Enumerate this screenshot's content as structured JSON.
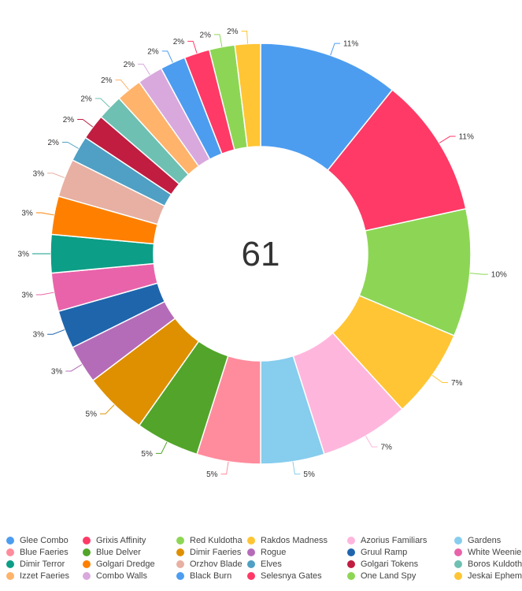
{
  "chart_data": {
    "type": "pie",
    "center_label": "61",
    "legend_position": "bottom",
    "series": [
      {
        "name": "Glee Combo",
        "value": 11,
        "label": "11%",
        "color": "#4c9df0"
      },
      {
        "name": "Grixis Affinity",
        "value": 11,
        "label": "11%",
        "color": "#ff3a66"
      },
      {
        "name": "Red Kuldotha",
        "value": 10,
        "label": "10%",
        "color": "#8dd655"
      },
      {
        "name": "Rakdos Madness",
        "value": 7,
        "label": "7%",
        "color": "#ffc534"
      },
      {
        "name": "Azorius Familiars",
        "value": 7,
        "label": "7%",
        "color": "#ffb6dd"
      },
      {
        "name": "Gardens",
        "value": 5,
        "label": "5%",
        "color": "#86cdee"
      },
      {
        "name": "Blue Faeries",
        "value": 5,
        "label": "5%",
        "color": "#ff8c9d"
      },
      {
        "name": "Blue Delver",
        "value": 5,
        "label": "5%",
        "color": "#52a52a"
      },
      {
        "name": "Dimir Faeries",
        "value": 5,
        "label": "5%",
        "color": "#de9000"
      },
      {
        "name": "Rogue",
        "value": 3,
        "label": "3%",
        "color": "#b56cb8"
      },
      {
        "name": "Gruul Ramp",
        "value": 3,
        "label": "3%",
        "color": "#1f65ac"
      },
      {
        "name": "White Weenie",
        "value": 3,
        "label": "3%",
        "color": "#e963aa"
      },
      {
        "name": "Dimir Terror",
        "value": 3,
        "label": "3%",
        "color": "#0d9e87"
      },
      {
        "name": "Golgari Dredge",
        "value": 3,
        "label": "3%",
        "color": "#ff8000"
      },
      {
        "name": "Orzhov Blade",
        "value": 3,
        "label": "3%",
        "color": "#e7b0a2"
      },
      {
        "name": "Elves",
        "value": 2,
        "label": "2%",
        "color": "#4fa0c4"
      },
      {
        "name": "Golgari Tokens",
        "value": 2,
        "label": "2%",
        "color": "#c01d41"
      },
      {
        "name": "Boros Kuldotha",
        "value": 2,
        "label": "2%",
        "color": "#6ec0b2"
      },
      {
        "name": "Izzet Faeries",
        "value": 2,
        "label": "2%",
        "color": "#ffb36b"
      },
      {
        "name": "Combo Walls",
        "value": 2,
        "label": "2%",
        "color": "#d9a9dd"
      },
      {
        "name": "Black Burn",
        "value": 2,
        "label": "2%",
        "color": "#4c9df0"
      },
      {
        "name": "Selesnya Gates",
        "value": 2,
        "label": "2%",
        "color": "#ff3a66"
      },
      {
        "name": "One Land Spy",
        "value": 2,
        "label": "2%",
        "color": "#8dd655"
      },
      {
        "name": "Jeskai Ephemerate",
        "value": 2,
        "label": "2%",
        "color": "#ffc534"
      }
    ]
  }
}
